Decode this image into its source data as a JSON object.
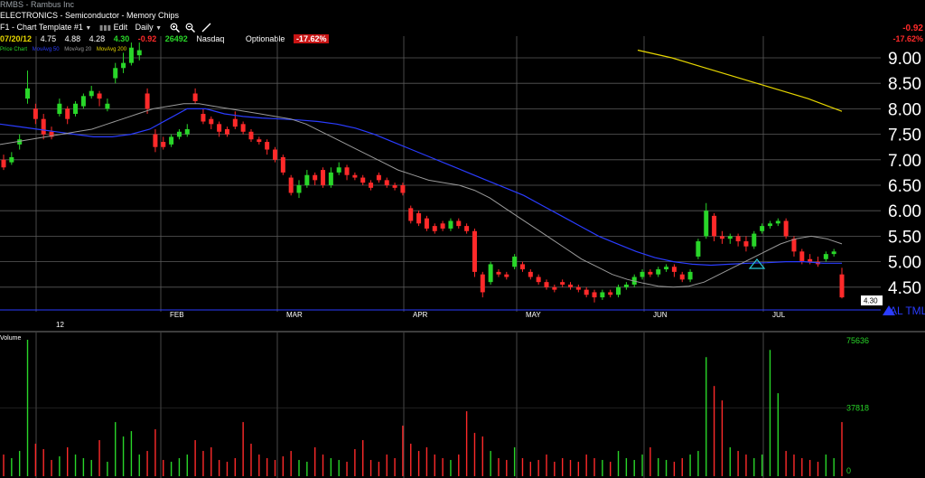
{
  "header": {
    "title": "RMBS - Rambus Inc",
    "sector": "ELECTRONICS - Semiconductor - Memory Chips",
    "template": "F1 - Chart Template #1",
    "edit_label": "Edit",
    "period": "Daily",
    "quote": {
      "date": "07/20/12",
      "open": "4.75",
      "high": "4.88",
      "low": "4.28",
      "close": "4.30",
      "change": "-0.92",
      "volume": "26492",
      "exchange": "Nasdaq",
      "optionable": "Optionable",
      "pct_change": "-17.62%"
    },
    "legend": {
      "price": "Price Chart",
      "ma50": "MovAvg 50",
      "ma20": "MovAvg 20",
      "ma200": "MovAvg 200"
    },
    "right_change": "-0.92",
    "right_pct": "-17.62%"
  },
  "axis": {
    "y_ticks": [
      "9.00",
      "8.50",
      "8.00",
      "7.50",
      "7.00",
      "6.50",
      "6.00",
      "5.50",
      "5.00",
      "4.50"
    ],
    "months": [
      "12",
      "FEB",
      "MAR",
      "APR",
      "MAY",
      "JUN",
      "JUL"
    ],
    "last_price_tag": "4.30",
    "alert_label": "AL TML",
    "volume_label": "Volume",
    "volume_ticks": [
      "75636",
      "37818",
      "0"
    ]
  },
  "colors": {
    "up": "#29d629",
    "down": "#ff2a2a",
    "ma20": "#9a9a9a",
    "ma50": "#2a3cff",
    "ma200": "#e6d600",
    "grid": "#5a5a5a"
  },
  "chart_data": {
    "type": "candlestick",
    "ylim": [
      4.1,
      9.4
    ],
    "candles": [
      {
        "o": 7.0,
        "c": 6.85,
        "h": 7.1,
        "l": 6.8
      },
      {
        "o": 6.95,
        "c": 7.05,
        "h": 7.15,
        "l": 6.9
      },
      {
        "o": 7.3,
        "c": 7.4,
        "h": 7.5,
        "l": 7.2
      },
      {
        "o": 8.2,
        "c": 8.4,
        "h": 8.75,
        "l": 8.1
      },
      {
        "o": 8.0,
        "c": 7.8,
        "h": 8.1,
        "l": 7.7
      },
      {
        "o": 7.8,
        "c": 7.5,
        "h": 7.9,
        "l": 7.4
      },
      {
        "o": 7.55,
        "c": 7.45,
        "h": 7.65,
        "l": 7.4
      },
      {
        "o": 7.9,
        "c": 8.1,
        "h": 8.2,
        "l": 7.85
      },
      {
        "o": 8.0,
        "c": 7.8,
        "h": 8.05,
        "l": 7.7
      },
      {
        "o": 7.9,
        "c": 8.1,
        "h": 8.15,
        "l": 7.85
      },
      {
        "o": 8.05,
        "c": 8.25,
        "h": 8.3,
        "l": 8.0
      },
      {
        "o": 8.25,
        "c": 8.35,
        "h": 8.45,
        "l": 8.2
      },
      {
        "o": 8.3,
        "c": 8.2,
        "h": 8.35,
        "l": 8.05
      },
      {
        "o": 8.0,
        "c": 8.1,
        "h": 8.2,
        "l": 7.95
      },
      {
        "o": 8.6,
        "c": 8.8,
        "h": 8.9,
        "l": 8.5
      },
      {
        "o": 8.8,
        "c": 8.9,
        "h": 9.1,
        "l": 8.7
      },
      {
        "o": 8.9,
        "c": 9.2,
        "h": 9.3,
        "l": 8.85
      },
      {
        "o": 9.05,
        "c": 9.15,
        "h": 9.3,
        "l": 8.95
      },
      {
        "o": 8.3,
        "c": 8.0,
        "h": 8.4,
        "l": 7.9
      },
      {
        "o": 7.5,
        "c": 7.25,
        "h": 7.6,
        "l": 7.15
      },
      {
        "o": 7.35,
        "c": 7.25,
        "h": 7.45,
        "l": 7.2
      },
      {
        "o": 7.3,
        "c": 7.45,
        "h": 7.5,
        "l": 7.25
      },
      {
        "o": 7.45,
        "c": 7.55,
        "h": 7.6,
        "l": 7.4
      },
      {
        "o": 7.5,
        "c": 7.6,
        "h": 7.7,
        "l": 7.45
      },
      {
        "o": 8.3,
        "c": 8.15,
        "h": 8.4,
        "l": 8.1
      },
      {
        "o": 7.9,
        "c": 7.75,
        "h": 8.0,
        "l": 7.7
      },
      {
        "o": 7.8,
        "c": 7.7,
        "h": 7.85,
        "l": 7.6
      },
      {
        "o": 7.7,
        "c": 7.55,
        "h": 7.75,
        "l": 7.45
      },
      {
        "o": 7.6,
        "c": 7.5,
        "h": 7.65,
        "l": 7.45
      },
      {
        "o": 7.8,
        "c": 7.65,
        "h": 7.95,
        "l": 7.6
      },
      {
        "o": 7.7,
        "c": 7.55,
        "h": 7.75,
        "l": 7.5
      },
      {
        "o": 7.55,
        "c": 7.4,
        "h": 7.6,
        "l": 7.35
      },
      {
        "o": 7.4,
        "c": 7.35,
        "h": 7.45,
        "l": 7.3
      },
      {
        "o": 7.35,
        "c": 7.2,
        "h": 7.4,
        "l": 7.1
      },
      {
        "o": 7.2,
        "c": 7.0,
        "h": 7.25,
        "l": 6.95
      },
      {
        "o": 7.05,
        "c": 6.75,
        "h": 7.1,
        "l": 6.7
      },
      {
        "o": 6.65,
        "c": 6.35,
        "h": 6.7,
        "l": 6.3
      },
      {
        "o": 6.35,
        "c": 6.5,
        "h": 6.6,
        "l": 6.25
      },
      {
        "o": 6.5,
        "c": 6.7,
        "h": 6.8,
        "l": 6.45
      },
      {
        "o": 6.7,
        "c": 6.6,
        "h": 6.75,
        "l": 6.5
      },
      {
        "o": 6.8,
        "c": 6.5,
        "h": 6.85,
        "l": 6.45
      },
      {
        "o": 6.5,
        "c": 6.75,
        "h": 6.85,
        "l": 6.45
      },
      {
        "o": 6.75,
        "c": 6.85,
        "h": 6.95,
        "l": 6.7
      },
      {
        "o": 6.85,
        "c": 6.7,
        "h": 6.9,
        "l": 6.6
      },
      {
        "o": 6.7,
        "c": 6.65,
        "h": 6.75,
        "l": 6.6
      },
      {
        "o": 6.65,
        "c": 6.55,
        "h": 6.7,
        "l": 6.5
      },
      {
        "o": 6.55,
        "c": 6.45,
        "h": 6.6,
        "l": 6.4
      },
      {
        "o": 6.7,
        "c": 6.6,
        "h": 6.75,
        "l": 6.55
      },
      {
        "o": 6.6,
        "c": 6.5,
        "h": 6.65,
        "l": 6.45
      },
      {
        "o": 6.5,
        "c": 6.45,
        "h": 6.55,
        "l": 6.4
      },
      {
        "o": 6.5,
        "c": 6.35,
        "h": 6.55,
        "l": 6.3
      },
      {
        "o": 6.05,
        "c": 5.8,
        "h": 6.1,
        "l": 5.75
      },
      {
        "o": 5.95,
        "c": 5.75,
        "h": 6.0,
        "l": 5.7
      },
      {
        "o": 5.85,
        "c": 5.65,
        "h": 5.9,
        "l": 5.6
      },
      {
        "o": 5.7,
        "c": 5.6,
        "h": 5.75,
        "l": 5.55
      },
      {
        "o": 5.75,
        "c": 5.65,
        "h": 5.8,
        "l": 5.6
      },
      {
        "o": 5.65,
        "c": 5.8,
        "h": 5.85,
        "l": 5.6
      },
      {
        "o": 5.8,
        "c": 5.7,
        "h": 5.85,
        "l": 5.65
      },
      {
        "o": 5.7,
        "c": 5.6,
        "h": 5.75,
        "l": 5.55
      },
      {
        "o": 5.6,
        "c": 4.8,
        "h": 5.65,
        "l": 4.7
      },
      {
        "o": 4.75,
        "c": 4.4,
        "h": 4.8,
        "l": 4.3
      },
      {
        "o": 4.6,
        "c": 4.95,
        "h": 5.0,
        "l": 4.55
      },
      {
        "o": 4.8,
        "c": 4.75,
        "h": 4.85,
        "l": 4.7
      },
      {
        "o": 4.75,
        "c": 4.7,
        "h": 4.8,
        "l": 4.65
      },
      {
        "o": 4.9,
        "c": 5.1,
        "h": 5.15,
        "l": 4.85
      },
      {
        "o": 4.95,
        "c": 4.85,
        "h": 5.0,
        "l": 4.8
      },
      {
        "o": 4.8,
        "c": 4.7,
        "h": 4.85,
        "l": 4.65
      },
      {
        "o": 4.7,
        "c": 4.6,
        "h": 4.75,
        "l": 4.55
      },
      {
        "o": 4.6,
        "c": 4.5,
        "h": 4.65,
        "l": 4.45
      },
      {
        "o": 4.5,
        "c": 4.45,
        "h": 4.55,
        "l": 4.4
      },
      {
        "o": 4.6,
        "c": 4.55,
        "h": 4.65,
        "l": 4.5
      },
      {
        "o": 4.55,
        "c": 4.5,
        "h": 4.6,
        "l": 4.45
      },
      {
        "o": 4.5,
        "c": 4.45,
        "h": 4.55,
        "l": 4.4
      },
      {
        "o": 4.45,
        "c": 4.35,
        "h": 4.5,
        "l": 4.3
      },
      {
        "o": 4.4,
        "c": 4.3,
        "h": 4.45,
        "l": 4.2
      },
      {
        "o": 4.3,
        "c": 4.4,
        "h": 4.45,
        "l": 4.25
      },
      {
        "o": 4.4,
        "c": 4.35,
        "h": 4.45,
        "l": 4.3
      },
      {
        "o": 4.35,
        "c": 4.5,
        "h": 4.55,
        "l": 4.3
      },
      {
        "o": 4.5,
        "c": 4.55,
        "h": 4.6,
        "l": 4.45
      },
      {
        "o": 4.55,
        "c": 4.7,
        "h": 4.75,
        "l": 4.5
      },
      {
        "o": 4.7,
        "c": 4.8,
        "h": 4.85,
        "l": 4.65
      },
      {
        "o": 4.8,
        "c": 4.75,
        "h": 4.85,
        "l": 4.7
      },
      {
        "o": 4.75,
        "c": 4.85,
        "h": 4.9,
        "l": 4.7
      },
      {
        "o": 4.85,
        "c": 4.9,
        "h": 4.95,
        "l": 4.8
      },
      {
        "o": 4.9,
        "c": 4.8,
        "h": 4.95,
        "l": 4.7
      },
      {
        "o": 4.75,
        "c": 4.65,
        "h": 4.8,
        "l": 4.6
      },
      {
        "o": 4.65,
        "c": 4.8,
        "h": 4.85,
        "l": 4.6
      },
      {
        "o": 5.1,
        "c": 5.4,
        "h": 5.45,
        "l": 5.05
      },
      {
        "o": 5.5,
        "c": 6.0,
        "h": 6.15,
        "l": 5.45
      },
      {
        "o": 5.9,
        "c": 5.5,
        "h": 5.95,
        "l": 5.4
      },
      {
        "o": 5.5,
        "c": 5.45,
        "h": 5.6,
        "l": 5.35
      },
      {
        "o": 5.45,
        "c": 5.5,
        "h": 5.55,
        "l": 5.35
      },
      {
        "o": 5.5,
        "c": 5.4,
        "h": 5.55,
        "l": 5.3
      },
      {
        "o": 5.4,
        "c": 5.3,
        "h": 5.5,
        "l": 5.2
      },
      {
        "o": 5.3,
        "c": 5.55,
        "h": 5.6,
        "l": 5.25
      },
      {
        "o": 5.6,
        "c": 5.7,
        "h": 5.75,
        "l": 5.55
      },
      {
        "o": 5.7,
        "c": 5.75,
        "h": 5.8,
        "l": 5.65
      },
      {
        "o": 5.75,
        "c": 5.8,
        "h": 5.85,
        "l": 5.7
      },
      {
        "o": 5.8,
        "c": 5.5,
        "h": 5.85,
        "l": 5.45
      },
      {
        "o": 5.45,
        "c": 5.2,
        "h": 5.5,
        "l": 5.1
      },
      {
        "o": 5.2,
        "c": 5.0,
        "h": 5.25,
        "l": 4.95
      },
      {
        "o": 5.05,
        "c": 5.0,
        "h": 5.15,
        "l": 4.95
      },
      {
        "o": 5.0,
        "c": 4.95,
        "h": 5.1,
        "l": 4.9
      },
      {
        "o": 5.05,
        "c": 5.15,
        "h": 5.2,
        "l": 5.0
      },
      {
        "o": 5.15,
        "c": 5.2,
        "h": 5.25,
        "l": 5.1
      },
      {
        "o": 4.75,
        "c": 4.3,
        "h": 4.88,
        "l": 4.28
      }
    ],
    "ma20": [
      7.3,
      7.35,
      7.4,
      7.45,
      7.5,
      7.55,
      7.6,
      7.7,
      7.8,
      7.9,
      8.0,
      8.05,
      8.1,
      8.1,
      8.05,
      8.0,
      7.95,
      7.9,
      7.85,
      7.8,
      7.7,
      7.55,
      7.4,
      7.25,
      7.1,
      6.95,
      6.8,
      6.7,
      6.6,
      6.55,
      6.5,
      6.4,
      6.25,
      6.05,
      5.85,
      5.65,
      5.45,
      5.25,
      5.05,
      4.9,
      4.75,
      4.65,
      4.58,
      4.52,
      4.5,
      4.52,
      4.6,
      4.75,
      4.9,
      5.05,
      5.2,
      5.35,
      5.45,
      5.5,
      5.45,
      5.35
    ],
    "ma50": [
      7.7,
      7.65,
      7.6,
      7.55,
      7.5,
      7.45,
      7.45,
      7.5,
      7.6,
      7.8,
      8.0,
      8.0,
      7.9,
      7.85,
      7.82,
      7.8,
      7.78,
      7.75,
      7.7,
      7.62,
      7.5,
      7.35,
      7.2,
      7.05,
      6.9,
      6.75,
      6.6,
      6.45,
      6.3,
      6.1,
      5.9,
      5.7,
      5.5,
      5.35,
      5.2,
      5.08,
      5.0,
      4.95,
      4.93,
      4.95,
      4.97,
      4.98,
      5.0,
      5.0,
      4.97,
      4.97
    ],
    "ma200": [
      9.15,
      9.0,
      8.8,
      8.6,
      8.4,
      8.2,
      7.95
    ]
  },
  "volume_data": {
    "max": 75636,
    "bars": [
      12000,
      10000,
      14000,
      75636,
      18000,
      15000,
      9000,
      11000,
      16000,
      12000,
      10000,
      9000,
      20000,
      8000,
      30000,
      22000,
      25000,
      12000,
      14000,
      26000,
      9000,
      8000,
      10000,
      12000,
      20000,
      14000,
      16000,
      9000,
      8000,
      10000,
      30000,
      18000,
      12000,
      10000,
      9000,
      11000,
      14000,
      9000,
      8000,
      16000,
      12000,
      10000,
      9000,
      8000,
      15000,
      20000,
      9000,
      8000,
      12000,
      10000,
      28000,
      18000,
      14000,
      16000,
      12000,
      10000,
      9000,
      12000,
      36000,
      24000,
      22000,
      14000,
      10000,
      9000,
      16000,
      10000,
      8000,
      9000,
      12000,
      8000,
      10000,
      9000,
      8000,
      12000,
      10000,
      9000,
      8000,
      14000,
      10000,
      9000,
      12000,
      16000,
      10000,
      9000,
      8000,
      10000,
      12000,
      14000,
      66000,
      50000,
      42000,
      16000,
      14000,
      12000,
      10000,
      12000,
      70000,
      46000,
      14000,
      12000,
      10000,
      9000,
      8000,
      12000,
      10000,
      30000
    ]
  }
}
